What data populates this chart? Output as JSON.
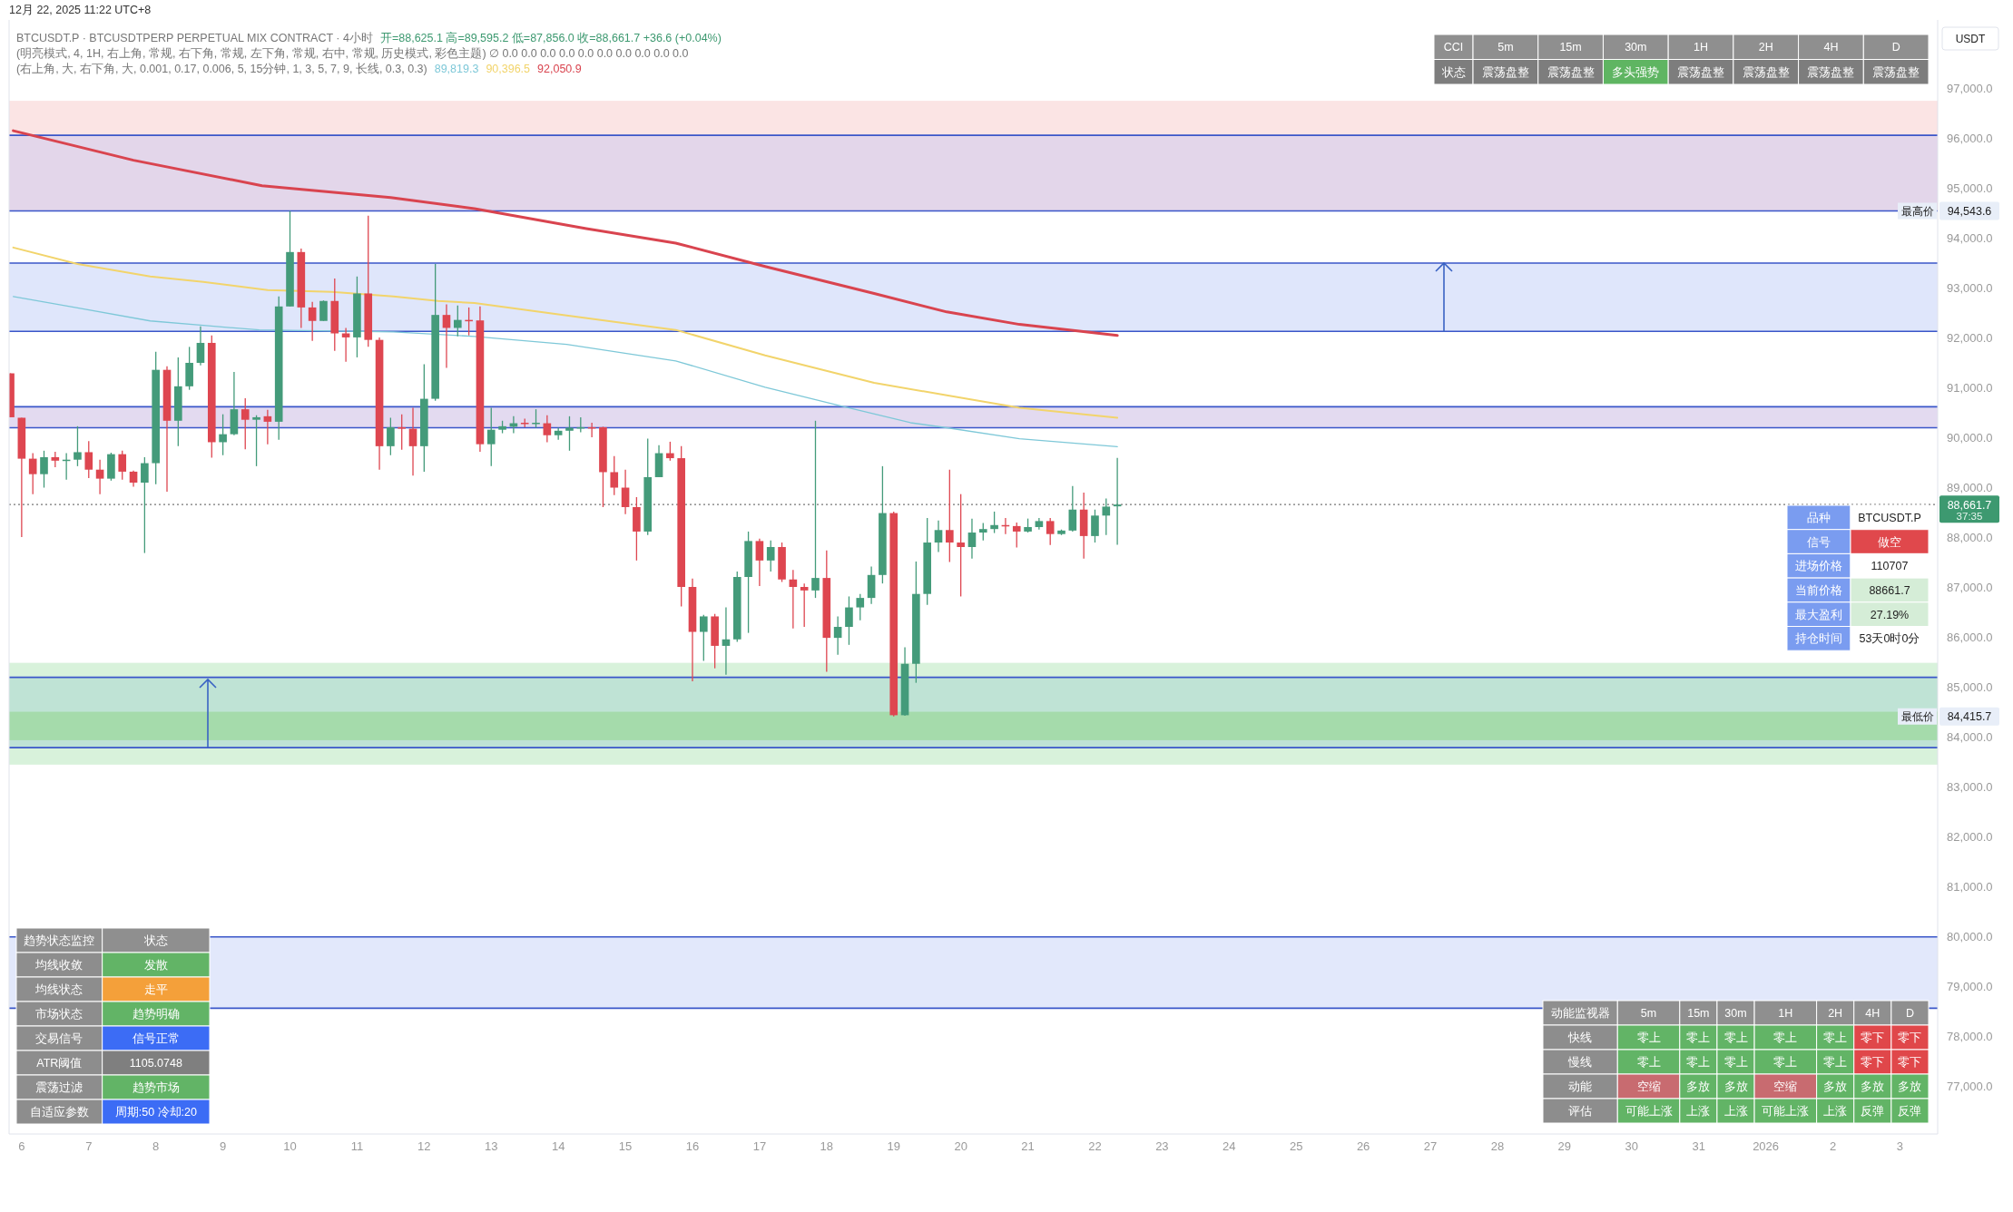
{
  "chart_data": [
    {
      "type": "candlestick",
      "title": "BTCUSDT.P · BTCUSDTPERP PERPETUAL MIX CONTRACT · 4小时",
      "ylabel": "USDT",
      "annotations": [
        "12月 22, 2025 11:22 UTC+8",
        "开=88,625.1 高=89,595.2 低=87,856.0 收=88,661.7 +36.6 (+0.04%)",
        "(明亮模式, 4, 1H, 右上角, 常规, 右下角, 常规, 左下角, 常规, 右中, 常规, 历史模式, 彩色主题) ∅ 0.0 0.0 0.0 0.0 0.0 0.0 0.0 0.0 0.0 0.0",
        "(右上角, 大, 右下角, 大, 0.001, 0.17, 0.006, 5, 15分钟, 1, 3, 5, 7, 9, 长线, 0.3, 0.3)",
        "89,819.3",
        "90,396.5",
        "92,050.9",
        "37:35",
        {
          "text": "最低价",
          "x": "2026-01-03T13:30",
          "y": 84415.7
        }
      ],
      "x": [
        "2025-12-05T20:00",
        "2025-12-06T00:00",
        "2025-12-06T04:00",
        "2025-12-06T08:00",
        "2025-12-06T12:00",
        "2025-12-06T16:00",
        "2025-12-06T20:00",
        "2025-12-07T00:00",
        "2025-12-07T04:00",
        "2025-12-07T08:00",
        "2025-12-07T12:00",
        "2025-12-07T16:00",
        "2025-12-07T20:00",
        "2025-12-08T00:00",
        "2025-12-08T04:00",
        "2025-12-08T08:00",
        "2025-12-08T12:00",
        "2025-12-08T16:00",
        "2025-12-08T20:00",
        "2025-12-09T00:00",
        "2025-12-09T04:00",
        "2025-12-09T08:00",
        "2025-12-09T12:00",
        "2025-12-09T16:00",
        "2025-12-09T20:00",
        "2025-12-10T00:00",
        "2025-12-10T04:00",
        "2025-12-10T08:00",
        "2025-12-10T12:00",
        "2025-12-10T16:00",
        "2025-12-10T20:00",
        "2025-12-11T00:00",
        "2025-12-11T04:00",
        "2025-12-11T08:00",
        "2025-12-11T12:00",
        "2025-12-11T16:00",
        "2025-12-11T20:00",
        "2025-12-12T00:00",
        "2025-12-12T04:00",
        "2025-12-12T08:00",
        "2025-12-12T12:00",
        "2025-12-12T16:00",
        "2025-12-12T20:00",
        "2025-12-13T00:00",
        "2025-12-13T04:00",
        "2025-12-13T08:00",
        "2025-12-13T12:00",
        "2025-12-13T16:00",
        "2025-12-13T20:00",
        "2025-12-14T00:00",
        "2025-12-14T04:00",
        "2025-12-14T08:00",
        "2025-12-14T12:00",
        "2025-12-14T16:00",
        "2025-12-14T20:00",
        "2025-12-15T00:00",
        "2025-12-15T04:00",
        "2025-12-15T08:00",
        "2025-12-15T12:00",
        "2025-12-15T16:00",
        "2025-12-15T20:00",
        "2025-12-16T00:00",
        "2025-12-16T04:00",
        "2025-12-16T08:00",
        "2025-12-16T12:00",
        "2025-12-16T16:00",
        "2025-12-16T20:00",
        "2025-12-17T00:00",
        "2025-12-17T04:00",
        "2025-12-17T08:00",
        "2025-12-17T12:00",
        "2025-12-17T16:00",
        "2025-12-17T20:00",
        "2025-12-18T00:00",
        "2025-12-18T04:00",
        "2025-12-18T08:00",
        "2025-12-18T12:00",
        "2025-12-18T16:00",
        "2025-12-18T20:00",
        "2025-12-19T00:00",
        "2025-12-19T04:00",
        "2025-12-19T08:00",
        "2025-12-19T12:00",
        "2025-12-19T16:00",
        "2025-12-19T20:00",
        "2025-12-20T00:00",
        "2025-12-20T04:00",
        "2025-12-20T08:00",
        "2025-12-20T12:00",
        "2025-12-20T16:00",
        "2025-12-20T20:00",
        "2025-12-21T00:00",
        "2025-12-21T04:00",
        "2025-12-21T08:00",
        "2025-12-21T12:00",
        "2025-12-21T16:00",
        "2025-12-21T20:00",
        "2025-12-22T00:00",
        "2025-12-22T04:00",
        "2025-12-22T08:00"
      ],
      "ohlc": [
        [
          91290,
          91290,
          90410,
          90410
        ],
        [
          90400,
          90400,
          88010,
          89580
        ],
        [
          89580,
          89690,
          88870,
          89270
        ],
        [
          89270,
          89740,
          89000,
          89610
        ],
        [
          89610,
          89720,
          89410,
          89540
        ],
        [
          89540,
          89690,
          89160,
          89560
        ],
        [
          89560,
          90230,
          89430,
          89710
        ],
        [
          89710,
          89930,
          89190,
          89360
        ],
        [
          89360,
          89560,
          88870,
          89180
        ],
        [
          89180,
          89700,
          89140,
          89670
        ],
        [
          89670,
          89740,
          89160,
          89320
        ],
        [
          89320,
          89340,
          89020,
          89100
        ],
        [
          89100,
          89610,
          87690,
          89490
        ],
        [
          89490,
          91720,
          89070,
          91360
        ],
        [
          91360,
          91430,
          88920,
          90340
        ],
        [
          90340,
          91610,
          89830,
          91030
        ],
        [
          91030,
          91820,
          90960,
          91500
        ],
        [
          91500,
          92230,
          91450,
          91900
        ],
        [
          91900,
          92050,
          89600,
          89910
        ],
        [
          89910,
          90470,
          89650,
          90070
        ],
        [
          90070,
          91320,
          90050,
          90570
        ],
        [
          90570,
          90790,
          89770,
          90360
        ],
        [
          90360,
          90450,
          89430,
          90410
        ],
        [
          90430,
          90560,
          89870,
          90320
        ],
        [
          90320,
          92830,
          89960,
          92630
        ],
        [
          92630,
          94543.6,
          92630,
          93720
        ],
        [
          93720,
          93790,
          92200,
          92610
        ],
        [
          92610,
          92720,
          91940,
          92340
        ],
        [
          92340,
          92750,
          92340,
          92740
        ],
        [
          92740,
          93190,
          91740,
          92090
        ],
        [
          92090,
          92200,
          91520,
          92010
        ],
        [
          92010,
          93230,
          91610,
          92890
        ],
        [
          92890,
          94450,
          91820,
          91960
        ],
        [
          91960,
          92010,
          89360,
          89830
        ],
        [
          89830,
          90400,
          89650,
          90210
        ],
        [
          90210,
          90470,
          89760,
          90180
        ],
        [
          90180,
          90600,
          89240,
          89830
        ],
        [
          89830,
          91470,
          89320,
          90780
        ],
        [
          90780,
          93480,
          90740,
          92460
        ],
        [
          92460,
          92670,
          91400,
          92200
        ],
        [
          92200,
          92650,
          92030,
          92360
        ],
        [
          92360,
          92610,
          92050,
          92350
        ],
        [
          92350,
          92630,
          89720,
          89870
        ],
        [
          89870,
          90600,
          89430,
          90160
        ],
        [
          90160,
          90340,
          90090,
          90230
        ],
        [
          90220,
          90430,
          90090,
          90290
        ],
        [
          90300,
          90380,
          90210,
          90280
        ],
        [
          90290,
          90570,
          90200,
          90300
        ],
        [
          90290,
          90450,
          89910,
          90050
        ],
        [
          90050,
          90200,
          89960,
          90140
        ],
        [
          90140,
          90430,
          89740,
          90200
        ],
        [
          90200,
          90410,
          90110,
          90210
        ],
        [
          90210,
          90300,
          90010,
          90200
        ],
        [
          90210,
          90220,
          88610,
          89310
        ],
        [
          89310,
          89630,
          88850,
          89000
        ],
        [
          89000,
          89360,
          88470,
          88610
        ],
        [
          88610,
          88810,
          87540,
          88120
        ],
        [
          88120,
          89980,
          88050,
          89210
        ],
        [
          89210,
          89850,
          89210,
          89690
        ],
        [
          89690,
          89920,
          89540,
          89590
        ],
        [
          89590,
          89830,
          86620,
          87010
        ],
        [
          87010,
          87180,
          85120,
          86110
        ],
        [
          86110,
          86450,
          85530,
          86420
        ],
        [
          86420,
          86470,
          85380,
          85830
        ],
        [
          85830,
          86600,
          85250,
          85960
        ],
        [
          85960,
          87320,
          85910,
          87210
        ],
        [
          87210,
          88120,
          86090,
          87930
        ],
        [
          87930,
          87980,
          87030,
          87540
        ],
        [
          87540,
          87940,
          87320,
          87810
        ],
        [
          87810,
          87900,
          87110,
          87160
        ],
        [
          87160,
          87350,
          86180,
          87010
        ],
        [
          87010,
          87080,
          86210,
          86940
        ],
        [
          86940,
          90340,
          86790,
          87190
        ],
        [
          87190,
          87740,
          85310,
          85990
        ],
        [
          85990,
          86420,
          85650,
          86210
        ],
        [
          86210,
          86820,
          85850,
          86600
        ],
        [
          86600,
          86870,
          86340,
          86790
        ],
        [
          86790,
          87420,
          86670,
          87250
        ],
        [
          87250,
          89430,
          87080,
          88490
        ],
        [
          88490,
          88520,
          84415.7,
          84440
        ],
        [
          84440,
          85800,
          84430,
          85470
        ],
        [
          85470,
          87520,
          85090,
          86870
        ],
        [
          86870,
          88390,
          86650,
          87900
        ],
        [
          87900,
          88340,
          87710,
          88150
        ],
        [
          88150,
          89360,
          87510,
          87900
        ],
        [
          87900,
          88870,
          86820,
          87810
        ],
        [
          87810,
          88380,
          87580,
          88100
        ],
        [
          88100,
          88290,
          87940,
          88170
        ],
        [
          88170,
          88520,
          88090,
          88250
        ],
        [
          88250,
          88390,
          88070,
          88240
        ],
        [
          88230,
          88300,
          87800,
          88120
        ],
        [
          88120,
          88380,
          88100,
          88210
        ],
        [
          88210,
          88390,
          88160,
          88330
        ],
        [
          88330,
          88390,
          87850,
          88070
        ],
        [
          88070,
          88160,
          88050,
          88140
        ],
        [
          88140,
          89030,
          88120,
          88560
        ],
        [
          88560,
          88900,
          87580,
          88030
        ],
        [
          88030,
          88560,
          87900,
          88440
        ],
        [
          88440,
          88780,
          88050,
          88620
        ],
        [
          88625.1,
          89595.2,
          87856.0,
          88661.7
        ]
      ],
      "series": [
        {
          "type": "line",
          "color": "#7ec8d8",
          "x": [
            "2025-12-05T21:00",
            "2025-12-06T20:00",
            "2025-12-07T22:00",
            "2025-12-08T17:00",
            "2025-12-09T13:00",
            "2025-12-11T13:00",
            "2025-12-12T18:00",
            "2025-12-14T03:00",
            "2025-12-15T18:00",
            "2025-12-17T02:00",
            "2025-12-18T04:00",
            "2025-12-19T06:00",
            "2025-12-19T19:00",
            "2025-12-20T21:00",
            "2025-12-22T08:00"
          ],
          "values": [
            92830,
            92600,
            92340,
            92250,
            92160,
            92120,
            92030,
            91870,
            91540,
            91010,
            90650,
            90300,
            90200,
            89980,
            89820
          ]
        },
        {
          "type": "line",
          "color": "#f2d46b",
          "x": [
            "2025-12-05T21:00",
            "2025-12-06T20:00",
            "2025-12-07T22:00",
            "2025-12-08T17:00",
            "2025-12-09T16:00",
            "2025-12-10T15:00",
            "2025-12-11T13:00",
            "2025-12-12T05:00",
            "2025-12-12T18:00",
            "2025-12-14T03:00",
            "2025-12-15T18:00",
            "2025-12-17T02:00",
            "2025-12-18T17:00",
            "2025-12-19T19:00",
            "2025-12-20T21:00",
            "2025-12-22T08:00"
          ],
          "values": [
            93810,
            93480,
            93230,
            93120,
            92960,
            92920,
            92830,
            92740,
            92700,
            92450,
            92160,
            91650,
            91100,
            90850,
            90600,
            90400
          ]
        },
        {
          "type": "line",
          "color": "#d9444f",
          "x": [
            "2025-12-05T21:00",
            "2025-12-07T16:00",
            "2025-12-09T14:00",
            "2025-12-11T12:00",
            "2025-12-12T18:00",
            "2025-12-14T10:00",
            "2025-12-15T18:00",
            "2025-12-17T02:00",
            "2025-12-18T17:00",
            "2025-12-19T19:00",
            "2025-12-20T21:00",
            "2025-12-22T08:00"
          ],
          "values": [
            96150,
            95560,
            95050,
            94810,
            94590,
            94190,
            93900,
            93430,
            92890,
            92520,
            92270,
            92050
          ]
        }
      ],
      "bands": [
        {
          "axis": "y",
          "from": 96060,
          "to": 96750,
          "color": "#fbe4e4"
        },
        {
          "axis": "y",
          "from": 94543.6,
          "to": 96060,
          "color": "#e3d6ea"
        },
        {
          "axis": "y",
          "from": 92130,
          "to": 93500,
          "color": "#dfe6fb"
        },
        {
          "axis": "y",
          "from": 90200,
          "to": 90620,
          "color": "#e3daf0"
        },
        {
          "axis": "y",
          "from": 83450,
          "to": 85490,
          "color": "#d8f2db"
        },
        {
          "axis": "y",
          "from": 83790,
          "to": 85200,
          "color": "#bfe3d5"
        },
        {
          "axis": "y",
          "from": 83940,
          "to": 84510,
          "color": "#a5dbab"
        },
        {
          "axis": "y",
          "from": 78570,
          "to": 80000,
          "color": "#e2e8fb"
        }
      ],
      "ref_lines": [
        {
          "axis": "y",
          "value": 96060,
          "color": "#3a56c9"
        },
        {
          "axis": "y",
          "value": 94543.6,
          "label": "最高价",
          "color": "#3a56c9"
        },
        {
          "axis": "y",
          "value": 93500,
          "color": "#3a56c9"
        },
        {
          "axis": "y",
          "value": 92130,
          "color": "#3a56c9"
        },
        {
          "axis": "y",
          "value": 90620,
          "color": "#3a56c9"
        },
        {
          "axis": "y",
          "value": 90200,
          "color": "#3a56c9"
        },
        {
          "axis": "y",
          "value": 85200,
          "color": "#3a56c9"
        },
        {
          "axis": "y",
          "value": 83790,
          "color": "#3a56c9"
        },
        {
          "axis": "y",
          "value": 80000,
          "color": "#3a56c9"
        },
        {
          "axis": "y",
          "value": 78570,
          "color": "#3a56c9"
        },
        {
          "axis": "y",
          "value": 88661.7,
          "color": "#777777",
          "line_style": "dotted"
        }
      ],
      "xlim": [
        "2025-12-05T19:30",
        "2026-01-03T13:30"
      ],
      "xticks": [
        {
          "value": "2025-12-06",
          "label": "6"
        },
        {
          "value": "2025-12-07",
          "label": "7"
        },
        {
          "value": "2025-12-08",
          "label": "8"
        },
        {
          "value": "2025-12-09",
          "label": "9"
        },
        {
          "value": "2025-12-10",
          "label": "10"
        },
        {
          "value": "2025-12-11",
          "label": "11"
        },
        {
          "value": "2025-12-12",
          "label": "12"
        },
        {
          "value": "2025-12-13",
          "label": "13"
        },
        {
          "value": "2025-12-14",
          "label": "14"
        },
        {
          "value": "2025-12-15",
          "label": "15"
        },
        {
          "value": "2025-12-16",
          "label": "16"
        },
        {
          "value": "2025-12-17",
          "label": "17"
        },
        {
          "value": "2025-12-18",
          "label": "18"
        },
        {
          "value": "2025-12-19",
          "label": "19"
        },
        {
          "value": "2025-12-20",
          "label": "20"
        },
        {
          "value": "2025-12-21",
          "label": "21"
        },
        {
          "value": "2025-12-22",
          "label": "22"
        },
        {
          "value": "2025-12-23",
          "label": "23"
        },
        {
          "value": "2025-12-24",
          "label": "24"
        },
        {
          "value": "2025-12-25",
          "label": "25"
        },
        {
          "value": "2025-12-26",
          "label": "26"
        },
        {
          "value": "2025-12-27",
          "label": "27"
        },
        {
          "value": "2025-12-28",
          "label": "28"
        },
        {
          "value": "2025-12-29",
          "label": "29"
        },
        {
          "value": "2025-12-30",
          "label": "30"
        },
        {
          "value": "2025-12-31",
          "label": "31"
        },
        {
          "value": "2026-01-01",
          "label": "2026"
        },
        {
          "value": "2026-01-02",
          "label": "2"
        },
        {
          "value": "2026-01-03",
          "label": "3"
        }
      ],
      "ylim": [
        76050,
        98370
      ],
      "yticks": [
        {
          "value": 77000,
          "label": "77,000.0"
        },
        {
          "value": 78000,
          "label": "78,000.0"
        },
        {
          "value": 79000,
          "label": "79,000.0"
        },
        {
          "value": 80000,
          "label": "80,000.0"
        },
        {
          "value": 81000,
          "label": "81,000.0"
        },
        {
          "value": 82000,
          "label": "82,000.0"
        },
        {
          "value": 83000,
          "label": "83,000.0"
        },
        {
          "value": 84000,
          "label": "84,000.0"
        },
        {
          "value": 85000,
          "label": "85,000.0"
        },
        {
          "value": 86000,
          "label": "86,000.0"
        },
        {
          "value": 87000,
          "label": "87,000.0"
        },
        {
          "value": 88000,
          "label": "88,000.0"
        },
        {
          "value": 89000,
          "label": "89,000.0"
        },
        {
          "value": 90000,
          "label": "90,000.0"
        },
        {
          "value": 91000,
          "label": "91,000.0"
        },
        {
          "value": 92000,
          "label": "92,000.0"
        },
        {
          "value": 93000,
          "label": "93,000.0"
        },
        {
          "value": 94000,
          "label": "94,000.0"
        },
        {
          "value": 95000,
          "label": "95,000.0"
        },
        {
          "value": 96000,
          "label": "96,000.0"
        },
        {
          "value": 97000,
          "label": "97,000.0"
        },
        {
          "value": 94543.6,
          "label": "94,543.6"
        },
        {
          "value": 84415.7,
          "label": "84,415.7"
        },
        {
          "value": 88661.7,
          "label": "88,661.7"
        }
      ]
    },
    {
      "type": "other",
      "color": "#7d7d7d",
      "categories": [
        "CCI",
        "5m",
        "15m",
        "30m",
        "1H",
        "2H",
        "4H",
        "D"
      ],
      "y_categories": [
        "状态"
      ],
      "cell_labels": [
        [
          "震荡盘整",
          "震荡盘整",
          "多头强势",
          "震荡盘整",
          "震荡盘整",
          "震荡盘整",
          "震荡盘整"
        ]
      ],
      "colors": [
        [
          "#7d7d7d",
          "#7d7d7d",
          "#5fb562",
          "#7d7d7d",
          "#7d7d7d",
          "#7d7d7d",
          "#7d7d7d"
        ]
      ]
    },
    {
      "type": "other",
      "color": "#7a9cf0",
      "y_categories": [
        "品种",
        "信号",
        "进场价格",
        "当前价格",
        "最大盈利",
        "持仓时间"
      ],
      "cell_labels": [
        [
          "BTCUSDT.P"
        ],
        [
          "做空"
        ],
        [
          "110707"
        ],
        [
          "88661.7"
        ],
        [
          "27.19%"
        ],
        [
          "53天0时0分"
        ]
      ],
      "colors": [
        [
          "#ffffff"
        ],
        [
          "#e0484c"
        ],
        [
          "#ffffff"
        ],
        [
          "#d5edd7"
        ],
        [
          "#d5edd7"
        ],
        [
          "#ffffff"
        ]
      ]
    },
    {
      "type": "other",
      "color": "#8d8d8d",
      "categories": [
        "趋势状态监控",
        "状态"
      ],
      "y_categories": [
        "均线收敛",
        "均线状态",
        "市场状态",
        "交易信号",
        "ATR阈值",
        "震荡过滤",
        "自适应参数"
      ],
      "cell_labels": [
        [
          "发散"
        ],
        [
          "走平"
        ],
        [
          "趋势明确"
        ],
        [
          "信号正常"
        ],
        [
          "1105.0748"
        ],
        [
          "趋势市场"
        ],
        [
          "周期:50 冷却:20"
        ]
      ],
      "colors": [
        [
          "#62b466"
        ],
        [
          "#f4a03a"
        ],
        [
          "#62b466"
        ],
        [
          "#3c6cf5"
        ],
        [
          "#7f7f7f"
        ],
        [
          "#62b466"
        ],
        [
          "#3c6cf5"
        ]
      ]
    },
    {
      "type": "other",
      "color": "#8d8d8d",
      "categories": [
        "动能监视器",
        "5m",
        "15m",
        "30m",
        "1H",
        "2H",
        "4H",
        "D"
      ],
      "y_categories": [
        "快线",
        "慢线",
        "动能",
        "评估"
      ],
      "cell_labels": [
        [
          "零上",
          "零上",
          "零上",
          "零上",
          "零上",
          "零下",
          "零下"
        ],
        [
          "零上",
          "零上",
          "零上",
          "零上",
          "零上",
          "零下",
          "零下"
        ],
        [
          "空缩",
          "多放",
          "多放",
          "空缩",
          "多放",
          "多放",
          "多放"
        ],
        [
          "可能上涨",
          "上涨",
          "上涨",
          "可能上涨",
          "上涨",
          "反弹",
          "反弹"
        ]
      ],
      "colors": [
        [
          "#62b466",
          "#62b466",
          "#62b466",
          "#62b466",
          "#62b466",
          "#e0474a",
          "#e0474a"
        ],
        [
          "#62b466",
          "#62b466",
          "#62b466",
          "#62b466",
          "#62b466",
          "#e0474a",
          "#e0474a"
        ],
        [
          "#c86b70",
          "#62b466",
          "#62b466",
          "#c86b70",
          "#62b466",
          "#62b466",
          "#62b466"
        ],
        [
          "#62b466",
          "#62b466",
          "#62b466",
          "#62b466",
          "#62b466",
          "#62b466",
          "#62b466"
        ]
      ]
    }
  ]
}
